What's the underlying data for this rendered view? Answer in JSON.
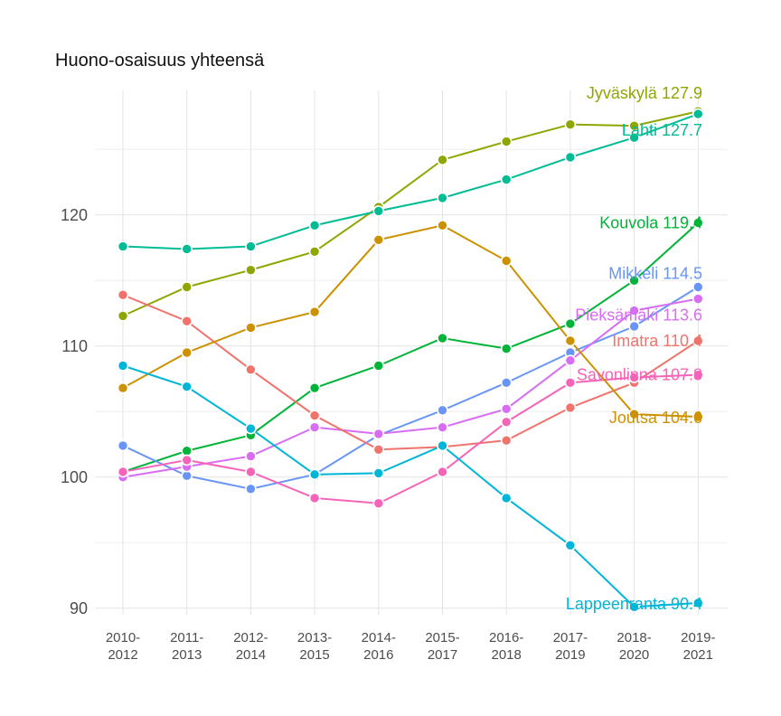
{
  "chart_data": {
    "type": "line",
    "title": "Huono-osaisuus yhteensä",
    "xlabel": "",
    "ylabel": "",
    "x": [
      "2010-\n2012",
      "2011-\n2013",
      "2012-\n2014",
      "2013-\n2015",
      "2014-\n2016",
      "2015-\n2017",
      "2016-\n2018",
      "2017-\n2019",
      "2018-\n2020",
      "2019-\n2021"
    ],
    "ylim": [
      89.5,
      129.5
    ],
    "yticks": [
      90,
      100,
      110,
      120
    ],
    "grid": true,
    "legend": "none",
    "series": [
      {
        "name": "Jyväskylä",
        "label": "Jyväskylä 127.9",
        "color": "#8fa600",
        "values": [
          112.3,
          114.5,
          115.8,
          117.2,
          120.6,
          124.2,
          125.6,
          126.9,
          126.8,
          127.9
        ]
      },
      {
        "name": "Lahti",
        "label": "Lahti 127.7",
        "color": "#00bc95",
        "values": [
          117.6,
          117.4,
          117.6,
          119.2,
          120.3,
          121.3,
          122.7,
          124.4,
          125.9,
          127.7
        ]
      },
      {
        "name": "Kouvola",
        "label": "Kouvola 119.4",
        "color": "#00b437",
        "values": [
          100.4,
          102.0,
          103.2,
          106.8,
          108.5,
          110.6,
          109.8,
          111.7,
          115.0,
          119.4
        ]
      },
      {
        "name": "Mikkeli",
        "label": "Mikkeli 114.5",
        "color": "#6895f7",
        "values": [
          102.4,
          100.1,
          99.1,
          100.2,
          103.2,
          105.1,
          107.2,
          109.5,
          111.5,
          114.5
        ]
      },
      {
        "name": "Pieksämäki",
        "label": "Pieksämäki 113.6",
        "color": "#d86df4",
        "values": [
          100.0,
          100.8,
          101.6,
          103.8,
          103.3,
          103.8,
          105.2,
          108.9,
          112.7,
          113.6
        ]
      },
      {
        "name": "Imatra",
        "label": "Imatra 110.4",
        "color": "#f0736c",
        "values": [
          113.9,
          111.9,
          108.2,
          104.7,
          102.1,
          102.3,
          102.8,
          105.3,
          107.2,
          110.4
        ]
      },
      {
        "name": "Savonlinna",
        "label": "Savonlinna 107.8",
        "color": "#f564b9",
        "values": [
          100.4,
          101.3,
          100.4,
          98.4,
          98.0,
          100.4,
          104.2,
          107.2,
          107.6,
          107.8
        ]
      },
      {
        "name": "Joutsa",
        "label": "Joutsa 104.6",
        "color": "#cd9100",
        "values": [
          106.8,
          109.5,
          111.4,
          112.6,
          118.1,
          119.2,
          116.5,
          110.4,
          104.8,
          104.6
        ]
      },
      {
        "name": "Lappeenranta",
        "label": "Lappeenranta 90.4",
        "color": "#00b6d8",
        "values": [
          108.5,
          106.9,
          103.7,
          100.2,
          100.3,
          102.4,
          98.4,
          94.8,
          90.1,
          90.4
        ]
      }
    ]
  }
}
